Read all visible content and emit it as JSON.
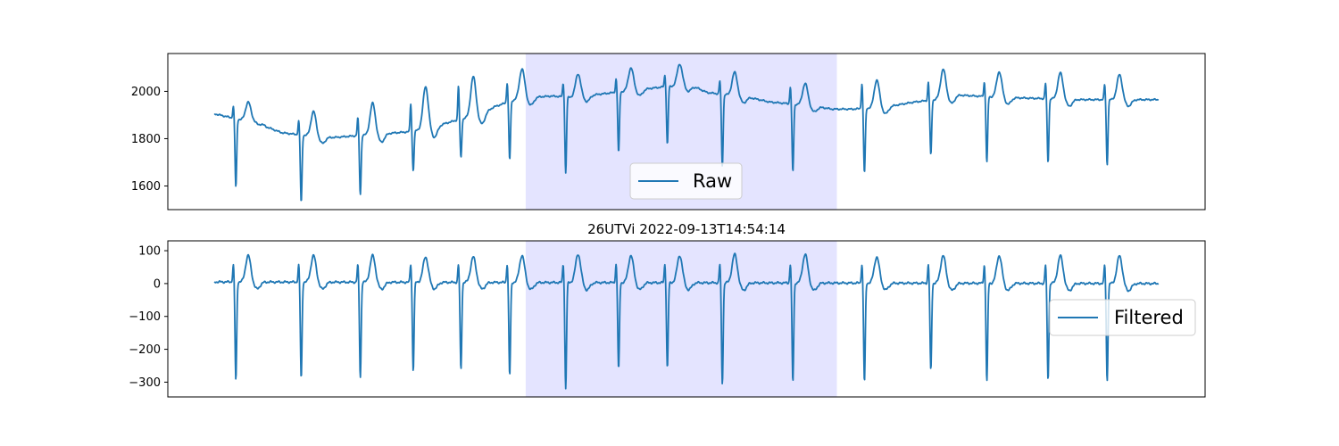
{
  "figure_title": "26UTVi 2022-09-13T14:54:14",
  "colors": {
    "line": "#1f77b4",
    "highlight": "#e4e4ff",
    "axes": "#000000"
  },
  "chart_data": [
    {
      "type": "line",
      "series": [
        {
          "name": "Raw"
        }
      ],
      "ylim": [
        1500,
        2160
      ],
      "yticks": [
        1600,
        1800,
        2000
      ],
      "xlim": [
        0,
        1
      ],
      "highlight_x": [
        0.345,
        0.645
      ],
      "legend": "lower center",
      "signal": {
        "x_range": [
          0.045,
          0.955
        ],
        "baseline_points": [
          [
            0.045,
            1905
          ],
          [
            0.07,
            1880
          ],
          [
            0.085,
            1885
          ],
          [
            0.095,
            1850
          ],
          [
            0.11,
            1825
          ],
          [
            0.14,
            1810
          ],
          [
            0.16,
            1805
          ],
          [
            0.19,
            1815
          ],
          [
            0.22,
            1825
          ],
          [
            0.235,
            1830
          ],
          [
            0.26,
            1855
          ],
          [
            0.28,
            1880
          ],
          [
            0.3,
            1900
          ],
          [
            0.315,
            1935
          ],
          [
            0.335,
            1965
          ],
          [
            0.35,
            1975
          ],
          [
            0.37,
            1980
          ],
          [
            0.39,
            1975
          ],
          [
            0.41,
            1985
          ],
          [
            0.44,
            2000
          ],
          [
            0.48,
            2020
          ],
          [
            0.505,
            2025
          ],
          [
            0.52,
            1995
          ],
          [
            0.54,
            1985
          ],
          [
            0.56,
            1975
          ],
          [
            0.58,
            1955
          ],
          [
            0.62,
            1940
          ],
          [
            0.64,
            1925
          ],
          [
            0.66,
            1925
          ],
          [
            0.68,
            1930
          ],
          [
            0.7,
            1940
          ],
          [
            0.72,
            1955
          ],
          [
            0.74,
            1965
          ],
          [
            0.76,
            1985
          ],
          [
            0.8,
            1975
          ],
          [
            0.84,
            1970
          ],
          [
            0.88,
            1965
          ],
          [
            0.92,
            1965
          ],
          [
            0.955,
            1965
          ]
        ],
        "beats": [
          {
            "x": 0.065,
            "r": 1935,
            "s": 1595,
            "t": 1970
          },
          {
            "x": 0.128,
            "r": 1875,
            "s": 1530,
            "t": 1940
          },
          {
            "x": 0.185,
            "r": 1890,
            "s": 1565,
            "t": 1970
          },
          {
            "x": 0.236,
            "r": 1950,
            "s": 1665,
            "t": 2040
          },
          {
            "x": 0.282,
            "r": 2025,
            "s": 1720,
            "t": 2080
          },
          {
            "x": 0.329,
            "r": 2040,
            "s": 1710,
            "t": 2105
          },
          {
            "x": 0.383,
            "r": 2035,
            "s": 1655,
            "t": 2090
          },
          {
            "x": 0.434,
            "r": 2055,
            "s": 1740,
            "t": 2110
          },
          {
            "x": 0.481,
            "r": 2070,
            "s": 1775,
            "t": 2130
          },
          {
            "x": 0.534,
            "r": 2045,
            "s": 1685,
            "t": 2105
          },
          {
            "x": 0.602,
            "r": 2020,
            "s": 1660,
            "t": 2055
          },
          {
            "x": 0.671,
            "r": 2035,
            "s": 1655,
            "t": 2065
          },
          {
            "x": 0.735,
            "r": 2040,
            "s": 1730,
            "t": 2105
          },
          {
            "x": 0.789,
            "r": 2040,
            "s": 1700,
            "t": 2105
          },
          {
            "x": 0.848,
            "r": 2035,
            "s": 1700,
            "t": 2100
          },
          {
            "x": 0.905,
            "r": 2030,
            "s": 1690,
            "t": 2090
          }
        ]
      }
    },
    {
      "type": "line",
      "title": "26UTVi 2022-09-13T14:54:14",
      "series": [
        {
          "name": "Filtered"
        }
      ],
      "ylim": [
        -345,
        130
      ],
      "yticks": [
        -300,
        -200,
        -100,
        0,
        100
      ],
      "xlim": [
        0,
        1
      ],
      "highlight_x": [
        0.345,
        0.645
      ],
      "legend": "center right",
      "signal": {
        "x_range": [
          0.045,
          0.955
        ],
        "baseline_points": [
          [
            0.045,
            5
          ],
          [
            0.955,
            0
          ]
        ],
        "beats": [
          {
            "x": 0.065,
            "r": 58,
            "s": -295,
            "t": 100
          },
          {
            "x": 0.128,
            "r": 58,
            "s": -290,
            "t": 100
          },
          {
            "x": 0.185,
            "r": 58,
            "s": -285,
            "t": 100
          },
          {
            "x": 0.236,
            "r": 60,
            "s": -265,
            "t": 95
          },
          {
            "x": 0.282,
            "r": 58,
            "s": -262,
            "t": 95
          },
          {
            "x": 0.329,
            "r": 60,
            "s": -280,
            "t": 100
          },
          {
            "x": 0.383,
            "r": 60,
            "s": -320,
            "t": 105
          },
          {
            "x": 0.434,
            "r": 60,
            "s": -262,
            "t": 100
          },
          {
            "x": 0.481,
            "r": 60,
            "s": -258,
            "t": 100
          },
          {
            "x": 0.534,
            "r": 60,
            "s": -305,
            "t": 105
          },
          {
            "x": 0.602,
            "r": 60,
            "s": -300,
            "t": 105
          },
          {
            "x": 0.671,
            "r": 60,
            "s": -300,
            "t": 95
          },
          {
            "x": 0.735,
            "r": 58,
            "s": -265,
            "t": 100
          },
          {
            "x": 0.789,
            "r": 58,
            "s": -298,
            "t": 100
          },
          {
            "x": 0.848,
            "r": 58,
            "s": -292,
            "t": 100
          },
          {
            "x": 0.905,
            "r": 58,
            "s": -295,
            "t": 100
          }
        ]
      }
    }
  ]
}
